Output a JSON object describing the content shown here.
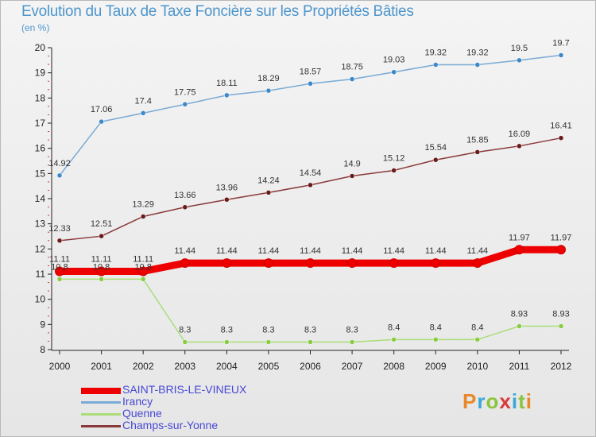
{
  "title": "Evolution du Taux de Taxe Foncière sur les Propriétés Bâties",
  "unit_label": "(en %)",
  "logo_text": "Proxiti",
  "logo_colors": [
    "#e8882a",
    "#3aa8d8",
    "#8cc43c",
    "#d83a3a",
    "#3aa8d8",
    "#8cc43c",
    "#e8882a"
  ],
  "chart_data": {
    "type": "line",
    "title": "Evolution du Taux de Taxe Foncière sur les Propriétés Bâties",
    "ylabel": "(en %)",
    "xlabel": "",
    "ylim": [
      8,
      20
    ],
    "yticks": [
      "8",
      "9",
      "10",
      "11",
      "12",
      "13",
      "14",
      "15",
      "16",
      "17",
      "18",
      "19",
      "20"
    ],
    "categories": [
      "2000",
      "2001",
      "2002",
      "2003",
      "2004",
      "2005",
      "2006",
      "2007",
      "2008",
      "2009",
      "2010",
      "2011",
      "2012"
    ],
    "series": [
      {
        "name": "SAINT-BRIS-LE-VINEUX",
        "color": "#ee0000",
        "marker": "#ee0000",
        "values": [
          11.11,
          11.11,
          11.11,
          11.44,
          11.44,
          11.44,
          11.44,
          11.44,
          11.44,
          11.44,
          11.44,
          11.97,
          11.97
        ],
        "labels": [
          "11.11",
          "11.11",
          "11.11",
          "11.44",
          "11.44",
          "11.44",
          "11.44",
          "11.44",
          "11.44",
          "11.44",
          "11.44",
          "11.97",
          "11.97"
        ]
      },
      {
        "name": "Irancy",
        "color": "#7aaad6",
        "marker": "#3d88c8",
        "values": [
          14.92,
          17.06,
          17.4,
          17.75,
          18.11,
          18.29,
          18.57,
          18.75,
          19.03,
          19.32,
          19.32,
          19.5,
          19.7
        ],
        "labels": [
          "14.92",
          "17.06",
          "17.4",
          "17.75",
          "18.11",
          "18.29",
          "18.57",
          "18.75",
          "19.03",
          "19.32",
          "19.32",
          "19.5",
          "19.7"
        ]
      },
      {
        "name": "Quenne",
        "color": "#aadd77",
        "marker": "#88cc44",
        "values": [
          10.8,
          10.8,
          10.8,
          8.3,
          8.3,
          8.3,
          8.3,
          8.3,
          8.4,
          8.4,
          8.4,
          8.93,
          8.93
        ],
        "labels": [
          "10.8",
          "10.8",
          "10.8",
          "8.3",
          "8.3",
          "8.3",
          "8.3",
          "8.3",
          "8.4",
          "8.4",
          "8.4",
          "8.93",
          "8.93"
        ]
      },
      {
        "name": "Champs-sur-Yonne",
        "color": "#8a3a3a",
        "marker": "#6b1a1a",
        "values": [
          12.33,
          12.51,
          13.29,
          13.66,
          13.96,
          14.24,
          14.54,
          14.9,
          15.12,
          15.54,
          15.85,
          16.09,
          16.41
        ],
        "labels": [
          "12.33",
          "12.51",
          "13.29",
          "13.66",
          "13.96",
          "14.24",
          "14.54",
          "14.9",
          "15.12",
          "15.54",
          "15.85",
          "16.09",
          "16.41"
        ]
      }
    ]
  }
}
